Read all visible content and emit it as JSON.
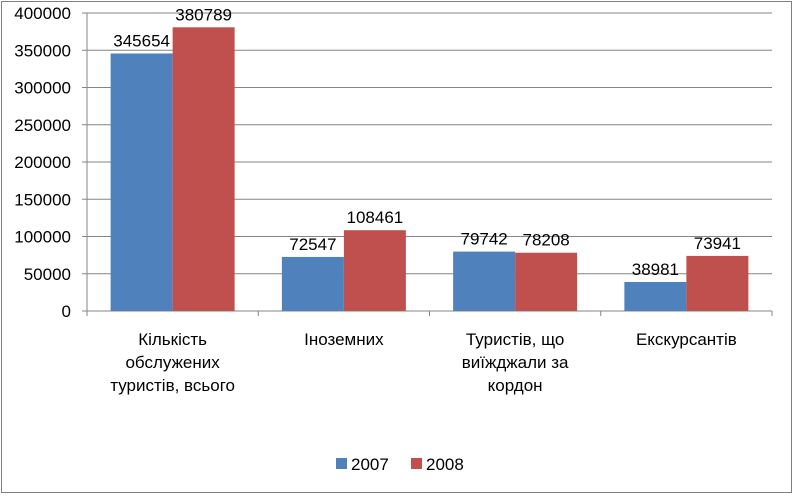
{
  "chart_data": {
    "type": "bar",
    "categories": [
      [
        "Кількість",
        "обслужених",
        "туристів, всього"
      ],
      [
        "Іноземних"
      ],
      [
        "Туристів, що",
        "виїжджали за",
        "кордон"
      ],
      [
        "Екскурсантів"
      ]
    ],
    "series": [
      {
        "name": "2007",
        "values": [
          345654,
          72547,
          79742,
          38981
        ],
        "color": "#4f81bd"
      },
      {
        "name": "2008",
        "values": [
          380789,
          108461,
          78208,
          73941
        ],
        "color": "#c0504d"
      }
    ],
    "ylim": [
      0,
      400000
    ],
    "yticks": [
      "0",
      "50000",
      "100000",
      "150000",
      "200000",
      "250000",
      "300000",
      "350000",
      "400000"
    ],
    "grid": true,
    "legend_position": "bottom"
  }
}
